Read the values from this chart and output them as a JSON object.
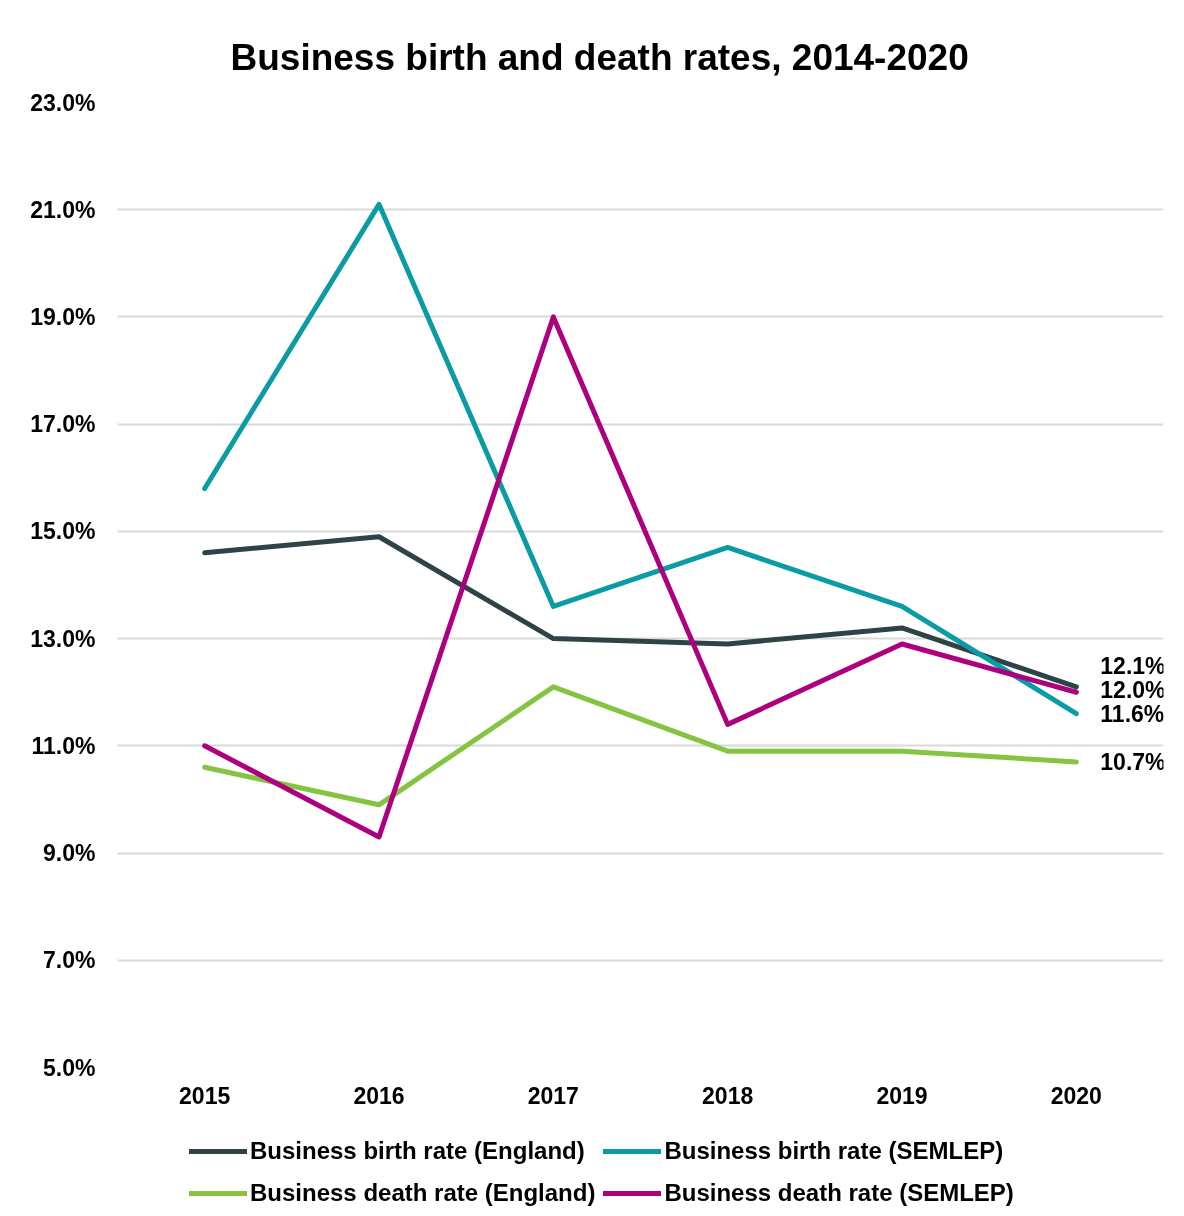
{
  "chart_data": {
    "type": "line",
    "title": "Business birth and death rates, 2014-2020",
    "categories": [
      "2015",
      "2016",
      "2017",
      "2018",
      "2019",
      "2020"
    ],
    "series": [
      {
        "name": "Business birth rate (England)",
        "color": "#2e4347",
        "values": [
          14.6,
          14.9,
          13.0,
          12.9,
          13.2,
          12.1
        ],
        "value_labels": [
          null,
          null,
          null,
          null,
          null,
          "12.1%"
        ]
      },
      {
        "name": "Business birth rate (SEMLEP)",
        "color": "#0a9ba3",
        "values": [
          15.8,
          21.1,
          13.6,
          14.7,
          13.6,
          11.6
        ],
        "value_labels": [
          null,
          null,
          null,
          null,
          null,
          "11.6%"
        ]
      },
      {
        "name": "Business death rate (England)",
        "color": "#84c440",
        "values": [
          10.6,
          9.9,
          12.1,
          10.9,
          10.9,
          10.7
        ],
        "value_labels": [
          null,
          null,
          null,
          null,
          null,
          "10.7%"
        ]
      },
      {
        "name": "Business death rate (SEMLEP)",
        "color": "#ad007f",
        "values": [
          11.0,
          9.3,
          19.0,
          11.4,
          12.9,
          12.0
        ],
        "value_labels": [
          null,
          null,
          null,
          null,
          null,
          "12.0%"
        ]
      }
    ],
    "ylim": [
      5,
      23
    ],
    "yticks": [
      {
        "value": 5,
        "label": "5.0%"
      },
      {
        "value": 7,
        "label": "7.0%"
      },
      {
        "value": 9,
        "label": "9.0%"
      },
      {
        "value": 11,
        "label": "11.0%"
      },
      {
        "value": 13,
        "label": "13.0%"
      },
      {
        "value": 15,
        "label": "15.0%"
      },
      {
        "value": 17,
        "label": "17.0%"
      },
      {
        "value": 19,
        "label": "19.0%"
      },
      {
        "value": 21,
        "label": "21.0%"
      },
      {
        "value": 23,
        "label": "23.0%"
      }
    ],
    "grid": "y",
    "legend": "bottom"
  }
}
